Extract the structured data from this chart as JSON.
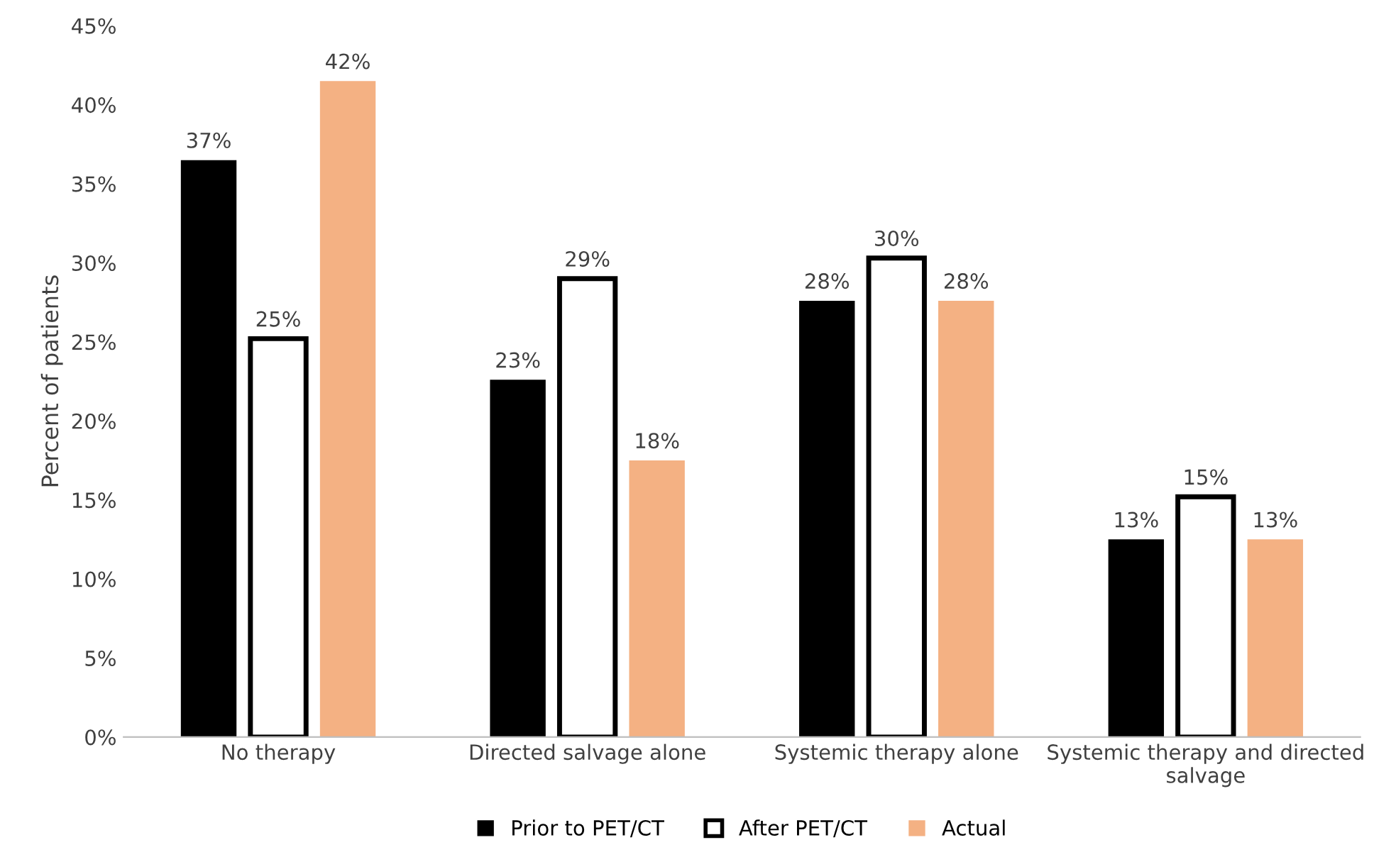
{
  "chart_data": {
    "type": "bar",
    "ylabel": "Percent of patients",
    "categories": [
      "No therapy",
      "Directed salvage alone",
      "Systemic therapy alone",
      "Systemic therapy and directed salvage"
    ],
    "series": [
      {
        "name": "Prior to PET/CT",
        "color": "#000000",
        "values": [
          36.5,
          22.6,
          27.6,
          12.5
        ],
        "value_labels": [
          "37%",
          "23%",
          "28%",
          "13%"
        ]
      },
      {
        "name": "After PET/CT",
        "color": "#ffffff",
        "values": [
          25.2,
          29.0,
          30.3,
          15.2
        ],
        "value_labels": [
          "25%",
          "29%",
          "30%",
          "15%"
        ]
      },
      {
        "name": "Actual",
        "color": "#f4b183",
        "values": [
          41.5,
          17.5,
          27.6,
          12.5
        ],
        "value_labels": [
          "42%",
          "18%",
          "28%",
          "13%"
        ]
      }
    ],
    "ylim": [
      0,
      45
    ],
    "yticks": [
      {
        "value": 0,
        "label": "0%"
      },
      {
        "value": 5,
        "label": "5%"
      },
      {
        "value": 10,
        "label": "10%"
      },
      {
        "value": 15,
        "label": "15%"
      },
      {
        "value": 20,
        "label": "20%"
      },
      {
        "value": 25,
        "label": "25%"
      },
      {
        "value": 30,
        "label": "30%"
      },
      {
        "value": 35,
        "label": "35%"
      },
      {
        "value": 40,
        "label": "40%"
      },
      {
        "value": 45,
        "label": "45%"
      }
    ],
    "grid": false,
    "legend": "bottom"
  }
}
